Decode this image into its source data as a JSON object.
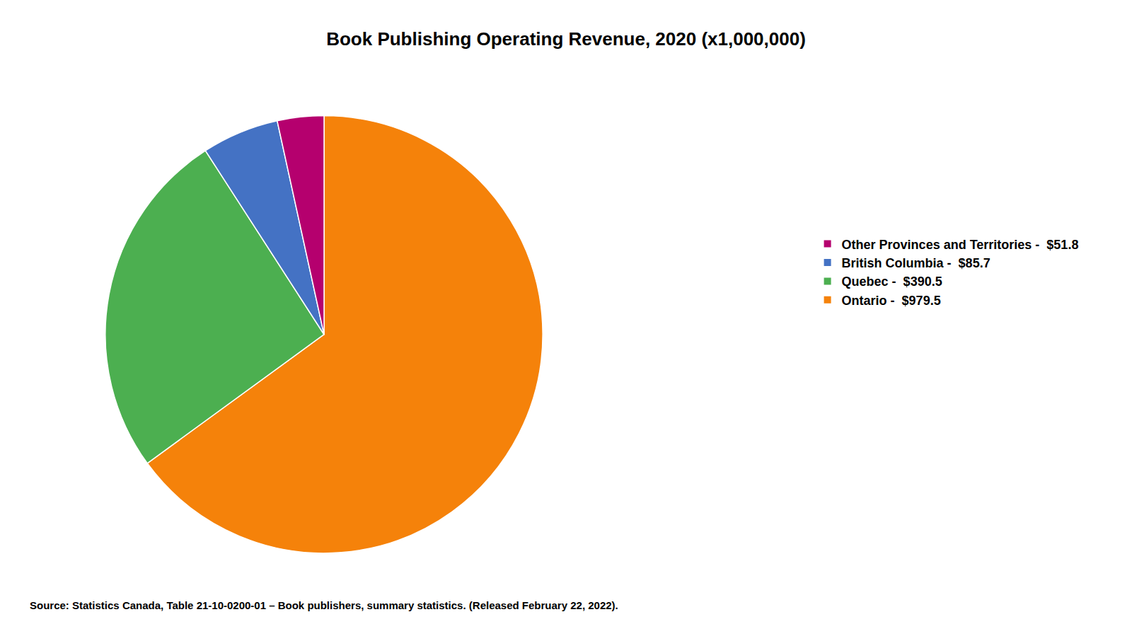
{
  "chart_data": {
    "type": "pie",
    "title": "Book Publishing Operating Revenue, 2020 (x1,000,000)",
    "categories": [
      "Ontario -  $979.5",
      "Quebec -  $390.5",
      "British Columbia -  $85.7",
      "Other Provinces and Territories -  $51.8"
    ],
    "values": [
      979.5,
      390.5,
      85.7,
      51.8
    ],
    "colors": [
      "#f5820a",
      "#4caf50",
      "#4472c4",
      "#b5006e"
    ],
    "legend": "right",
    "data_labels": false,
    "annotations": [
      "Source: Statistics Canada, Table 21-10-0200-01 – Book publishers, summary statistics. (Released February 22, 2022)."
    ]
  }
}
